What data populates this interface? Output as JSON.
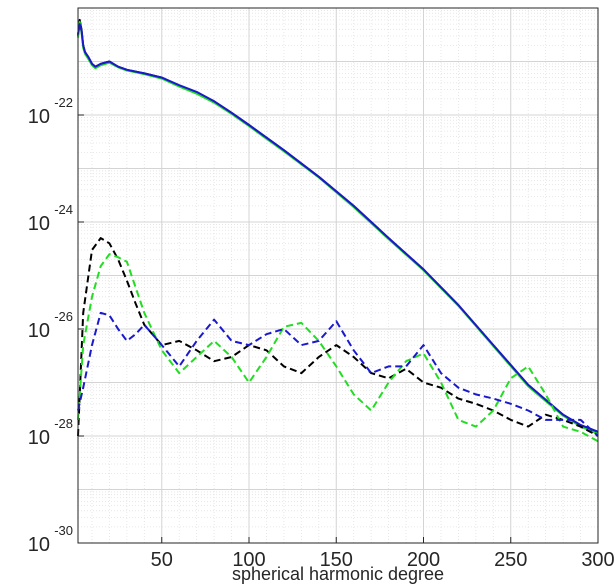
{
  "chart_data": {
    "type": "line",
    "title": "",
    "xlabel": "spherical harmonic degree",
    "ylabel": "",
    "xlim": [
      2,
      300
    ],
    "ylim": [
      1e-30,
      1e-20
    ],
    "yscale": "log",
    "grid": true,
    "minor_grid": true,
    "x_ticks": [
      {
        "value": 50,
        "label": "50"
      },
      {
        "value": 100,
        "label": "100"
      },
      {
        "value": 150,
        "label": "150"
      },
      {
        "value": 200,
        "label": "200"
      },
      {
        "value": 250,
        "label": "250"
      },
      {
        "value": 300,
        "label": "300"
      }
    ],
    "y_ticks": [
      {
        "value": 1e-22,
        "base": "10",
        "exp": "-22"
      },
      {
        "value": 1e-24,
        "base": "10",
        "exp": "-24"
      },
      {
        "value": 1e-26,
        "base": "10",
        "exp": "-26"
      },
      {
        "value": 1e-28,
        "base": "10",
        "exp": "-28"
      },
      {
        "value": 1e-30,
        "base": "10",
        "exp": "-30"
      }
    ],
    "series": [
      {
        "color": "#000000",
        "dash": false,
        "width": 2,
        "x": [
          2,
          3,
          4,
          5,
          6,
          8,
          10,
          12,
          15,
          20,
          25,
          30,
          40,
          50,
          60,
          70,
          80,
          90,
          100,
          120,
          140,
          160,
          180,
          200,
          220,
          240,
          260,
          280,
          290,
          300
        ],
        "y": [
          3e-21,
          6e-21,
          4e-21,
          2e-21,
          1.5e-21,
          1.2e-21,
          9e-22,
          8e-22,
          9e-22,
          1e-21,
          8e-22,
          7e-22,
          6e-22,
          5e-22,
          3.5e-22,
          2.6e-22,
          1.8e-22,
          1.1e-22,
          6.5e-23,
          2.2e-23,
          7e-24,
          2e-24,
          5e-25,
          1.3e-25,
          2.8e-26,
          5e-27,
          9e-28,
          2.5e-28,
          1.6e-28,
          1.2e-28
        ]
      },
      {
        "color": "#22dd22",
        "dash": false,
        "width": 2,
        "x": [
          2,
          3,
          4,
          5,
          6,
          8,
          10,
          12,
          15,
          20,
          25,
          30,
          40,
          50,
          60,
          70,
          80,
          90,
          100,
          120,
          140,
          160,
          180,
          200,
          220,
          240,
          260,
          280,
          290,
          300
        ],
        "y": [
          2.8e-21,
          5.5e-21,
          3.5e-21,
          1.8e-21,
          1.4e-21,
          1.1e-21,
          8.5e-22,
          7.5e-22,
          8.5e-22,
          9.5e-22,
          7.8e-22,
          6.8e-22,
          5.8e-22,
          4.8e-22,
          3.4e-22,
          2.5e-22,
          1.7e-22,
          1.05e-22,
          6.2e-23,
          2.1e-23,
          6.8e-24,
          1.9e-24,
          4.8e-25,
          1.25e-25,
          2.7e-26,
          4.8e-27,
          8.5e-28,
          2.4e-28,
          1.5e-28,
          1.1e-28
        ]
      },
      {
        "color": "#1a1acc",
        "dash": false,
        "width": 2,
        "x": [
          2,
          3,
          4,
          5,
          6,
          8,
          10,
          12,
          15,
          20,
          25,
          30,
          40,
          50,
          60,
          70,
          80,
          90,
          100,
          120,
          140,
          160,
          180,
          200,
          220,
          240,
          260,
          280,
          290,
          300
        ],
        "y": [
          3.2e-21,
          5e-21,
          3.8e-21,
          2e-21,
          1.5e-21,
          1.2e-21,
          9e-22,
          8e-22,
          9e-22,
          1e-21,
          8e-22,
          7e-22,
          6e-22,
          5e-22,
          3.6e-22,
          2.7e-22,
          1.8e-22,
          1.1e-22,
          6.5e-23,
          2.2e-23,
          7e-24,
          2e-24,
          5e-25,
          1.3e-25,
          2.8e-26,
          5e-27,
          9e-28,
          2.5e-28,
          1.6e-28,
          1.2e-28
        ]
      },
      {
        "color": "#000000",
        "dash": true,
        "width": 2,
        "x": [
          2,
          5,
          10,
          15,
          20,
          25,
          30,
          35,
          40,
          50,
          60,
          70,
          80,
          90,
          100,
          110,
          120,
          130,
          140,
          150,
          160,
          170,
          180,
          190,
          200,
          210,
          220,
          230,
          240,
          250,
          260,
          270,
          280,
          290,
          300
        ],
        "y": [
          1e-28,
          2e-26,
          3e-25,
          5e-25,
          4e-25,
          2e-25,
          8e-26,
          3e-26,
          1.2e-26,
          5e-27,
          6e-27,
          4e-27,
          2.5e-27,
          3e-27,
          5e-27,
          4e-27,
          2e-27,
          1.5e-27,
          3e-27,
          5e-27,
          3e-27,
          1.5e-27,
          1.2e-27,
          1.8e-27,
          1e-27,
          8e-28,
          5e-28,
          4e-28,
          3e-28,
          2e-28,
          1.5e-28,
          2.5e-28,
          2e-28,
          1.5e-28,
          1e-28
        ]
      },
      {
        "color": "#22dd22",
        "dash": true,
        "width": 2,
        "x": [
          2,
          5,
          10,
          15,
          20,
          25,
          30,
          35,
          40,
          50,
          60,
          70,
          80,
          90,
          100,
          110,
          120,
          130,
          140,
          150,
          160,
          170,
          180,
          190,
          200,
          210,
          220,
          230,
          240,
          250,
          260,
          270,
          280,
          290,
          300
        ],
        "y": [
          2e-28,
          5e-27,
          4e-26,
          1.5e-25,
          2.5e-25,
          2.2e-25,
          1.8e-25,
          6e-26,
          2e-26,
          4e-27,
          1.5e-27,
          3e-27,
          6e-27,
          3e-27,
          1e-27,
          3e-27,
          1.1e-26,
          1.3e-26,
          6e-27,
          2e-27,
          6e-28,
          3e-28,
          1e-27,
          2.5e-27,
          3.5e-27,
          1e-27,
          2e-28,
          1.5e-28,
          3e-28,
          1.2e-27,
          2e-27,
          6e-28,
          1.5e-28,
          1.2e-28,
          8e-29
        ]
      },
      {
        "color": "#1a1acc",
        "dash": true,
        "width": 2,
        "x": [
          2,
          5,
          10,
          15,
          20,
          25,
          30,
          35,
          40,
          50,
          60,
          70,
          80,
          90,
          100,
          110,
          120,
          130,
          140,
          150,
          160,
          170,
          180,
          190,
          200,
          210,
          220,
          230,
          240,
          250,
          260,
          270,
          280,
          290,
          300
        ],
        "y": [
          3e-28,
          8e-28,
          5e-27,
          2e-26,
          1.8e-26,
          1e-26,
          6e-27,
          8e-27,
          1.2e-26,
          5e-27,
          2e-27,
          6e-27,
          1.5e-26,
          6e-27,
          5e-27,
          8e-27,
          1e-26,
          5e-27,
          6e-27,
          1.4e-26,
          4e-27,
          1.5e-27,
          2e-27,
          2e-27,
          5e-27,
          1.5e-27,
          8e-28,
          6e-28,
          5e-28,
          4e-28,
          3e-28,
          2e-28,
          2e-28,
          2e-28,
          1e-28
        ]
      }
    ]
  }
}
